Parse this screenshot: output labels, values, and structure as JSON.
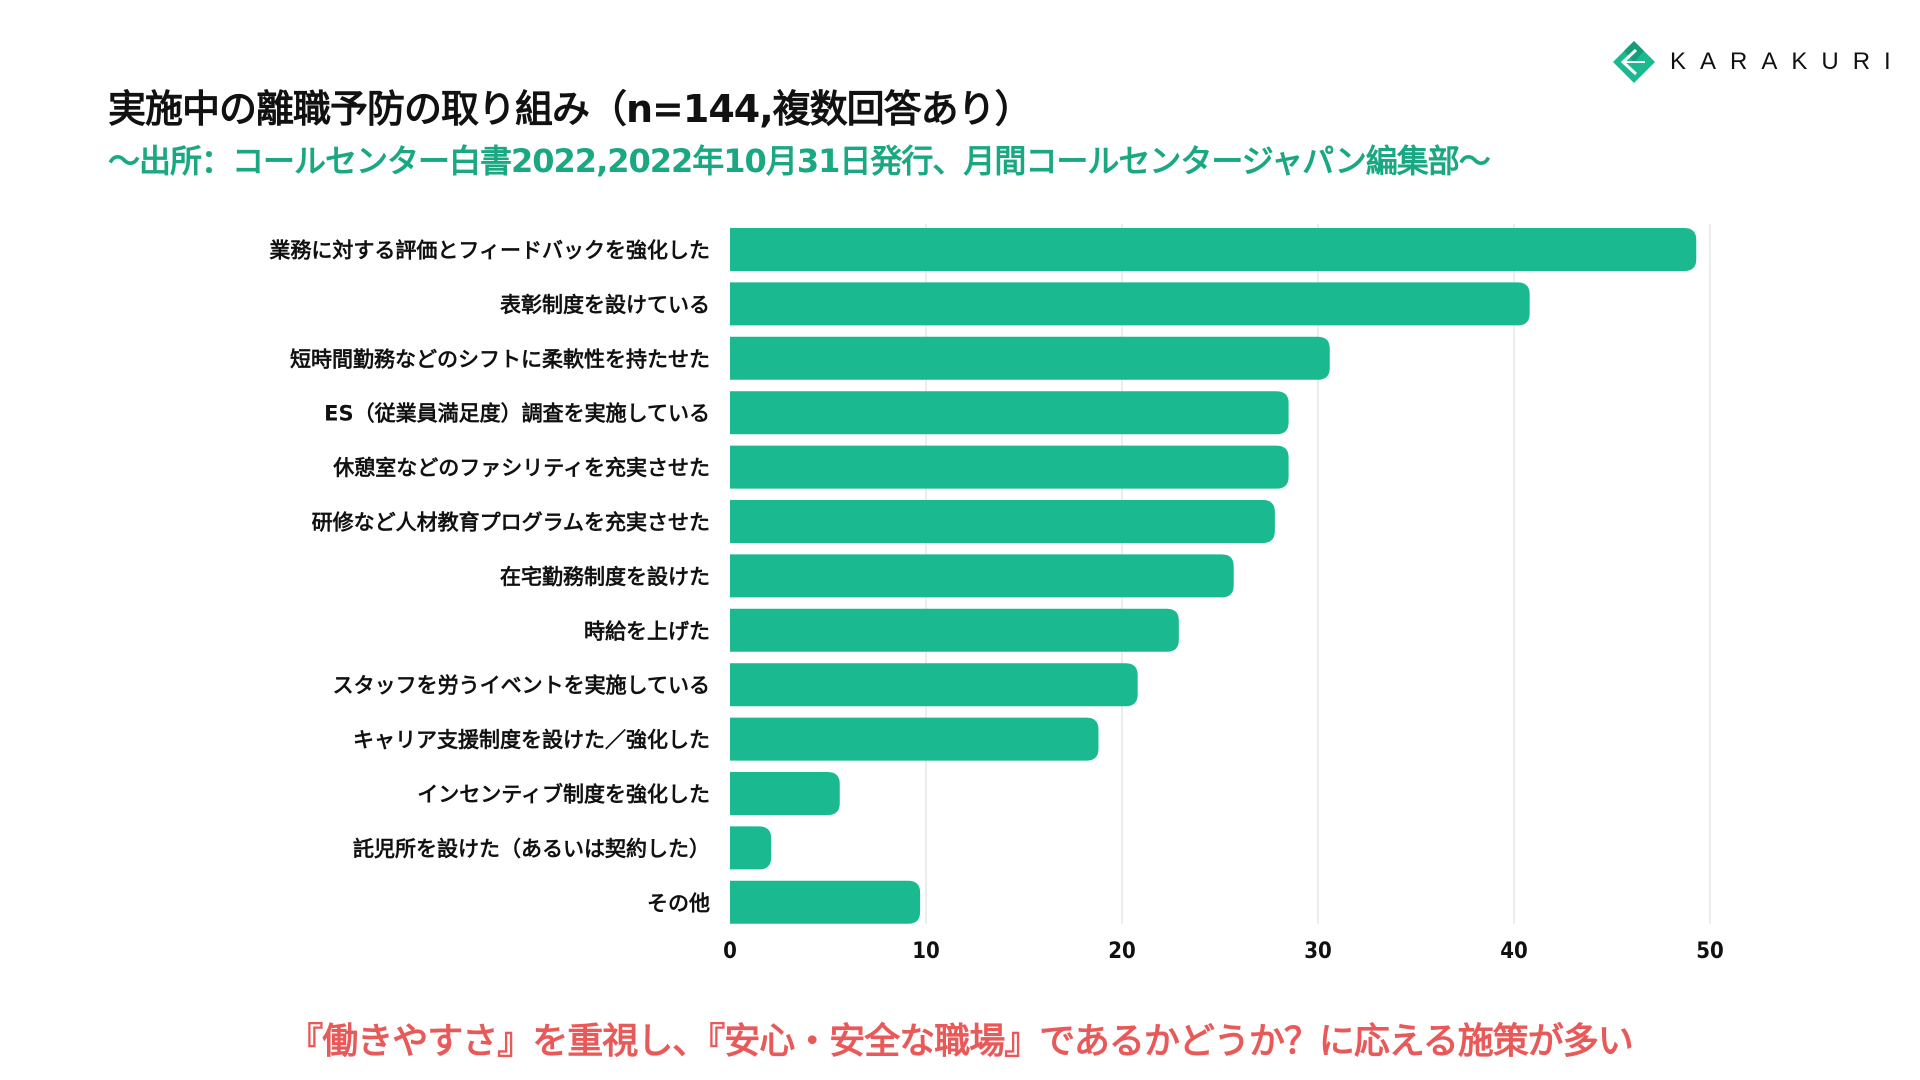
{
  "header": {
    "title": "実施中の離職予防の取り組み（n=144,複数回答あり）",
    "subtitle": "〜出所：コールセンター白書2022,2022年10月31日発行、月間コールセンタージャパン編集部〜",
    "logo_text": "KARAKURI"
  },
  "colors": {
    "bar": "#1bb98f",
    "subtitle": "#1aa883",
    "conclusion": "#e85a5a",
    "grid": "#d9d9d9"
  },
  "chart_data": {
    "type": "bar",
    "orientation": "horizontal",
    "categories": [
      "業務に対する評価とフィードバックを強化した",
      "表彰制度を設けている",
      "短時間勤務などのシフトに柔軟性を持たせた",
      "ES（従業員満足度）調査を実施している",
      "休憩室などのファシリティを充実させた",
      "研修など人材教育プログラムを充実させた",
      "在宅勤務制度を設けた",
      "時給を上げた",
      "スタッフを労うイベントを実施している",
      "キャリア支援制度を設けた／強化した",
      "インセンティブ制度を強化した",
      "託児所を設けた（あるいは契約した）",
      "その他"
    ],
    "values": [
      49.3,
      40.8,
      30.6,
      28.5,
      28.5,
      27.8,
      25.7,
      22.9,
      20.8,
      18.8,
      5.6,
      2.1,
      9.7
    ],
    "xlim": [
      0,
      50
    ],
    "xticks": [
      "0",
      "10",
      "20",
      "30",
      "40",
      "50"
    ],
    "grid": "vertical",
    "xlabel": "",
    "ylabel": ""
  },
  "conclusion": "『働きやすさ』を重視し、『安心・安全な職場』であるかどうか？に応える施策が多い"
}
